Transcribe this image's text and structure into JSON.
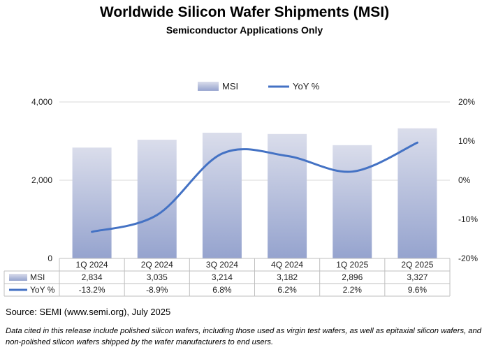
{
  "chart_data": {
    "type": "bar+line",
    "title": "Worldwide Silicon Wafer Shipments (MSI)",
    "subtitle": "Semiconductor Applications Only",
    "categories": [
      "1Q 2024",
      "2Q 2024",
      "3Q 2024",
      "4Q 2024",
      "1Q 2025",
      "2Q 2025"
    ],
    "series": [
      {
        "name": "MSI",
        "type": "bar",
        "axis": "left",
        "values": [
          2834,
          3035,
          3214,
          3182,
          2896,
          3327
        ],
        "labels": [
          "2,834",
          "3,035",
          "3,214",
          "3,182",
          "2,896",
          "3,327"
        ],
        "color_top": "#DADDEB",
        "color_bottom": "#95A3CE"
      },
      {
        "name": "YoY %",
        "type": "line",
        "axis": "right",
        "values": [
          -13.2,
          -8.9,
          6.8,
          6.2,
          2.2,
          9.6
        ],
        "labels": [
          "-13.2%",
          "-8.9%",
          "6.8%",
          "6.2%",
          "2.2%",
          "9.6%"
        ],
        "color": "#4472C4"
      }
    ],
    "left_axis": {
      "ylim": [
        0,
        4000
      ],
      "ticks": [
        0,
        2000,
        4000
      ],
      "tick_labels": [
        "0",
        "2,000",
        "4,000"
      ]
    },
    "right_axis": {
      "ylim": [
        -20,
        20
      ],
      "ticks": [
        20,
        10,
        0,
        -10,
        -20
      ],
      "tick_labels": [
        "20%",
        "10%",
        "0%",
        "-10%",
        "-20%"
      ]
    },
    "legend": {
      "position": "top-center",
      "items": [
        "MSI",
        "YoY %"
      ]
    },
    "gridlines": true,
    "data_table": true
  },
  "footer": {
    "source": "Source: SEMI (www.semi.org), July 2025",
    "note": "Data cited in this release include polished silicon wafers, including those used as virgin test wafers, as well as epitaxial silicon wafers, and non-polished silicon wafers shipped by the wafer manufacturers to end users."
  }
}
